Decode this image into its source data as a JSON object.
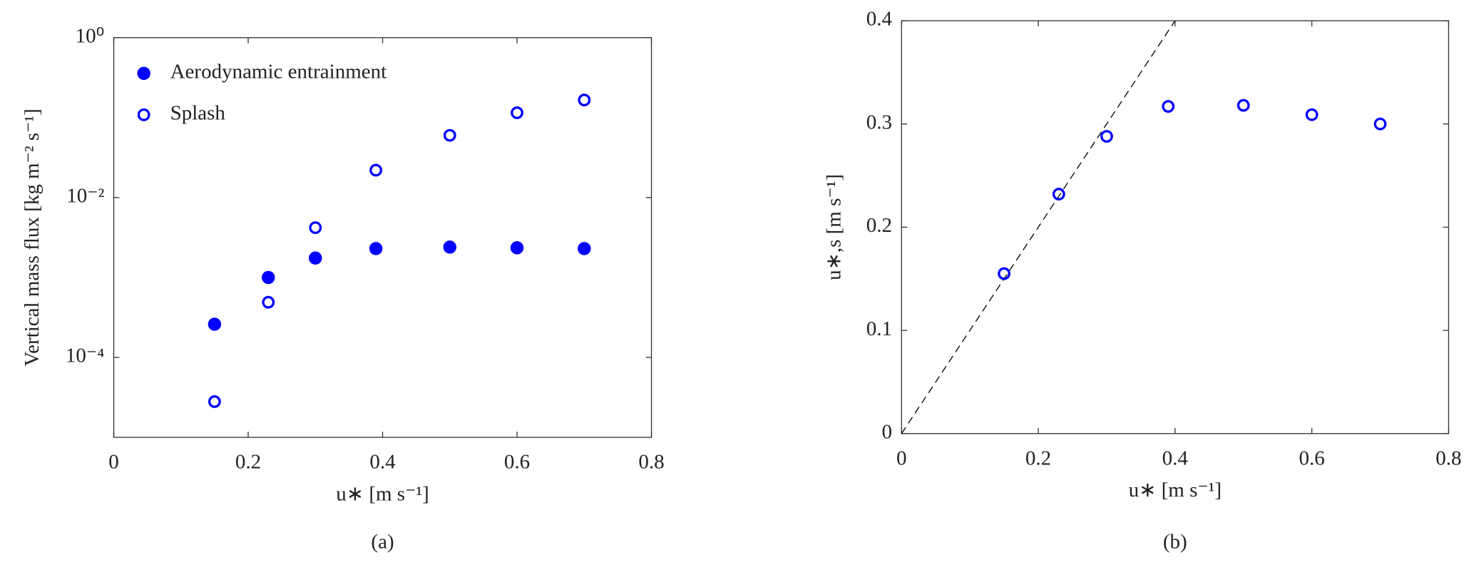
{
  "chart_data": [
    {
      "type": "scatter",
      "caption": "(a)",
      "xlabel": "u∗ [m s⁻¹]",
      "ylabel": "Vertical mass flux [kg m⁻² s⁻¹]",
      "x": [
        0.15,
        0.23,
        0.3,
        0.39,
        0.5,
        0.6,
        0.7
      ],
      "series": [
        {
          "name": "Aerodynamic entrainment",
          "color": "#0000ff",
          "marker": "filled",
          "values": [
            0.00026,
            0.001,
            0.00175,
            0.0023,
            0.0024,
            0.00235,
            0.0023
          ]
        },
        {
          "name": "Splash",
          "color": "#0000ff",
          "marker": "open",
          "values": [
            2.8e-05,
            0.00049,
            0.0042,
            0.022,
            0.06,
            0.115,
            0.166
          ]
        }
      ],
      "xlim": [
        0,
        0.8
      ],
      "xticks": [
        0,
        0.2,
        0.4,
        0.6,
        0.8
      ],
      "ylim": [
        1e-05,
        1
      ],
      "yscale": "log",
      "yticks": [
        {
          "value": 1,
          "label": "10⁰"
        },
        {
          "value": 0.01,
          "label": "10⁻²"
        },
        {
          "value": 0.0001,
          "label": "10⁻⁴"
        }
      ],
      "legend": "upper left"
    },
    {
      "type": "scatter",
      "caption": "(b)",
      "xlabel": "u∗ [m s⁻¹]",
      "ylabel": "u∗,s [m s⁻¹]",
      "x": [
        0.15,
        0.23,
        0.3,
        0.39,
        0.5,
        0.6,
        0.7
      ],
      "series": [
        {
          "color": "#0000ff",
          "marker": "open",
          "values": [
            0.155,
            0.232,
            0.288,
            0.317,
            0.318,
            0.309,
            0.3
          ]
        }
      ],
      "reference_line": {
        "x": [
          0,
          0.4
        ],
        "y": [
          0,
          0.4
        ]
      },
      "xlim": [
        0,
        0.8
      ],
      "xticks": [
        0,
        0.2,
        0.4,
        0.6,
        0.8
      ],
      "ylim": [
        0,
        0.4
      ],
      "yticks": [
        0,
        0.1,
        0.2,
        0.3,
        0.4
      ]
    }
  ]
}
